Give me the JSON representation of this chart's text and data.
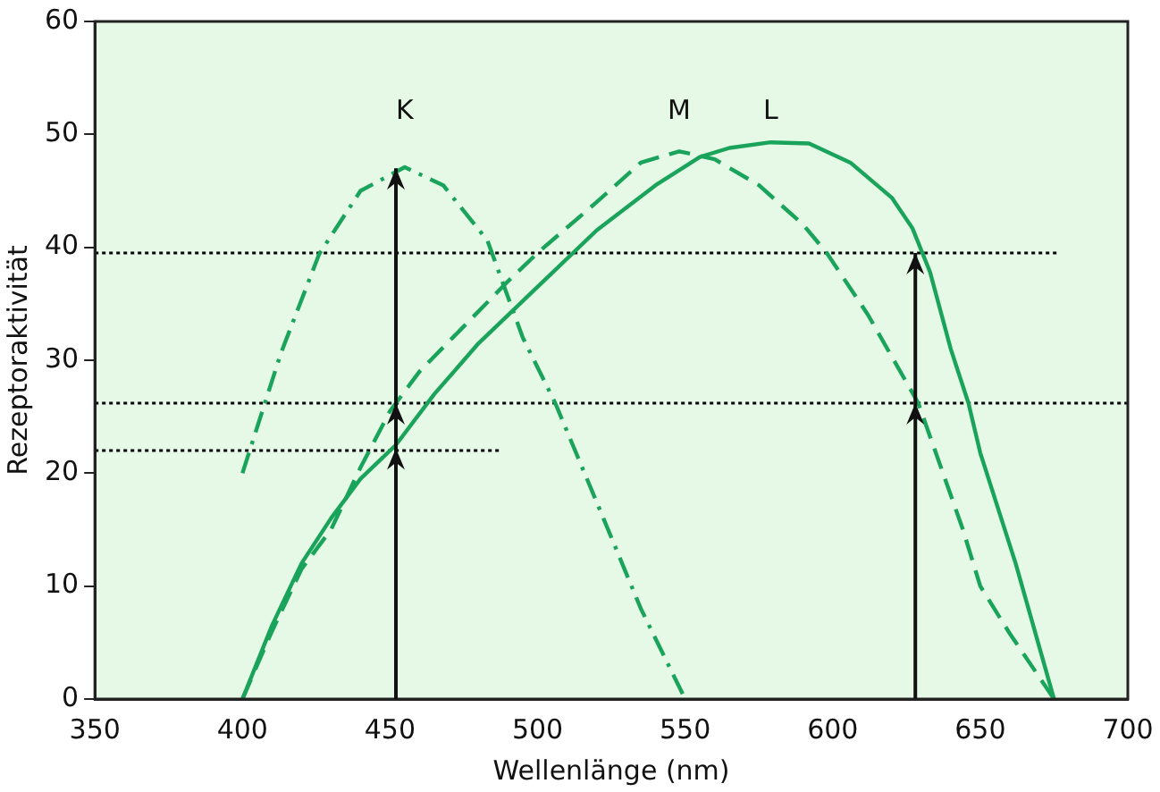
{
  "chart_data": {
    "type": "line",
    "xlabel": "Wellenlänge (nm)",
    "ylabel": "Rezeptoraktivität",
    "xlim": [
      350,
      700
    ],
    "xticks": [
      350,
      400,
      450,
      500,
      550,
      600,
      650,
      700
    ],
    "ylim": [
      0,
      60
    ],
    "yticks": [
      0,
      10,
      20,
      30,
      40,
      50,
      60
    ],
    "grid": false,
    "legend": false,
    "marker": "none",
    "series": [
      {
        "name": "K",
        "color": "#1aa35a",
        "line_style": "dashdot",
        "x": [
          400,
          413,
          426,
          440,
          455,
          468,
          483,
          495,
          506,
          522,
          535,
          550
        ],
        "values": [
          20,
          30.6,
          39.4,
          45,
          47.1,
          45.5,
          40.6,
          32,
          26.2,
          16.2,
          8,
          0
        ]
      },
      {
        "name": "M",
        "color": "#1aa35a",
        "line_style": "dashed",
        "x": [
          400,
          410,
          420,
          430,
          440,
          450,
          460,
          475,
          490,
          500,
          520,
          535,
          548,
          560,
          575,
          590,
          598,
          612,
          629,
          644,
          650,
          660,
          675
        ],
        "values": [
          0,
          6,
          11.5,
          15,
          20.5,
          25.5,
          29,
          33,
          37,
          39.5,
          44,
          47.5,
          48.5,
          47.8,
          45.5,
          42,
          39.5,
          34,
          26.2,
          15.1,
          10,
          5.8,
          0
        ]
      },
      {
        "name": "L",
        "color": "#1aa35a",
        "line_style": "solid",
        "x": [
          400,
          410,
          420,
          430,
          440,
          452,
          465,
          480,
          500,
          520,
          540,
          555,
          565,
          579,
          592,
          606,
          620,
          627,
          633,
          640,
          646,
          650,
          662,
          675
        ],
        "values": [
          0,
          6.5,
          12,
          16,
          19.5,
          22.5,
          27,
          31.5,
          36.5,
          41.5,
          45.5,
          48,
          48.8,
          49.3,
          49.2,
          47.5,
          44.4,
          41.7,
          37.8,
          31,
          26.2,
          21.8,
          12,
          0
        ]
      },
      {
        "color": "#000000",
        "line_style": "dotted",
        "x": [
          350,
          677
        ],
        "values": [
          39.5,
          39.5
        ]
      },
      {
        "color": "#000000",
        "line_style": "dotted",
        "x": [
          350,
          700
        ],
        "values": [
          26.2,
          26.2
        ]
      },
      {
        "color": "#000000",
        "line_style": "dotted",
        "x": [
          350,
          488
        ],
        "values": [
          22,
          22
        ]
      }
    ]
  }
}
